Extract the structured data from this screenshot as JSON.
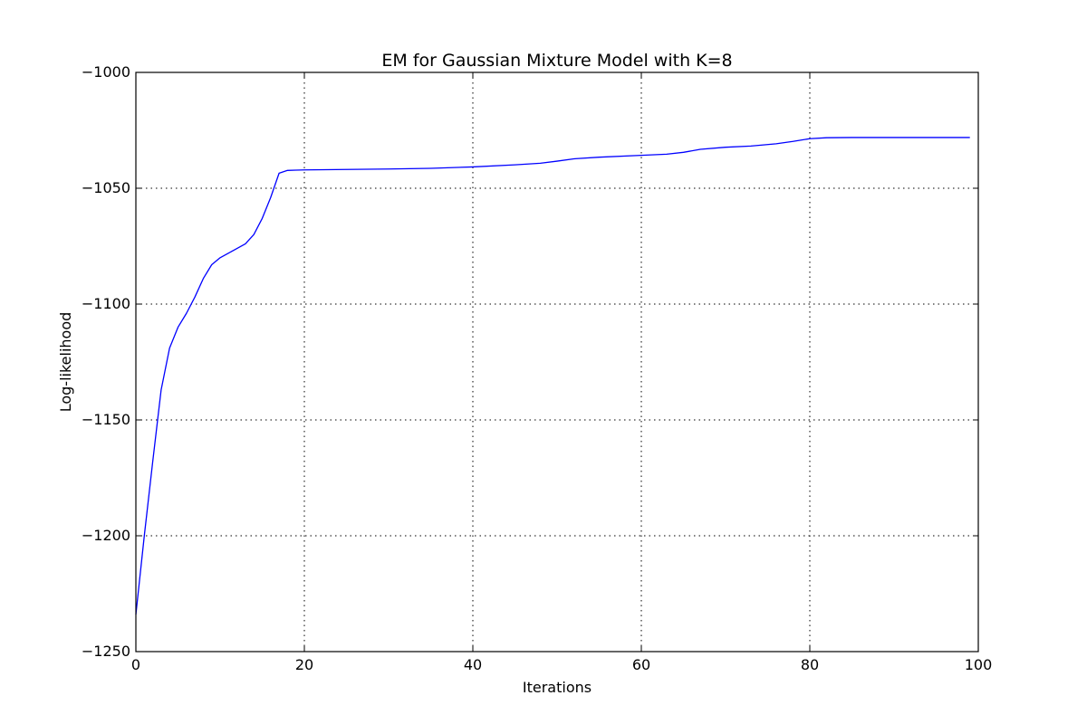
{
  "chart_data": {
    "type": "line",
    "title": "EM for Gaussian Mixture Model with K=8",
    "xlabel": "Iterations",
    "ylabel": "Log-likelihood",
    "xlim": [
      0,
      100
    ],
    "ylim": [
      -1250,
      -1000
    ],
    "xticks": [
      0,
      20,
      40,
      60,
      80,
      100
    ],
    "yticks": [
      -1000,
      -1050,
      -1100,
      -1150,
      -1200,
      -1250
    ],
    "grid": true,
    "series": [
      {
        "color": "#0000ff",
        "x": [
          0,
          1,
          2,
          3,
          4,
          5,
          6,
          7,
          8,
          9,
          10,
          11,
          12,
          13,
          14,
          15,
          16,
          17,
          18,
          19,
          20,
          25,
          30,
          35,
          40,
          45,
          48,
          50,
          52,
          55,
          60,
          63,
          65,
          67,
          70,
          73,
          76,
          78,
          80,
          82,
          85,
          90,
          95,
          99
        ],
        "y": [
          -1234,
          -1200,
          -1168,
          -1137,
          -1119,
          -1110,
          -1104,
          -1097,
          -1089,
          -1083,
          -1080,
          -1078,
          -1076,
          -1074,
          -1070,
          -1063,
          -1054,
          -1043.5,
          -1042.3,
          -1042.2,
          -1042.1,
          -1041.9,
          -1041.7,
          -1041.4,
          -1040.8,
          -1039.9,
          -1039.2,
          -1038.3,
          -1037.3,
          -1036.6,
          -1035.8,
          -1035.3,
          -1034.5,
          -1033.2,
          -1032.3,
          -1031.8,
          -1030.8,
          -1029.8,
          -1028.6,
          -1028.2,
          -1028.1,
          -1028.1,
          -1028.1,
          -1028.1
        ]
      }
    ]
  }
}
